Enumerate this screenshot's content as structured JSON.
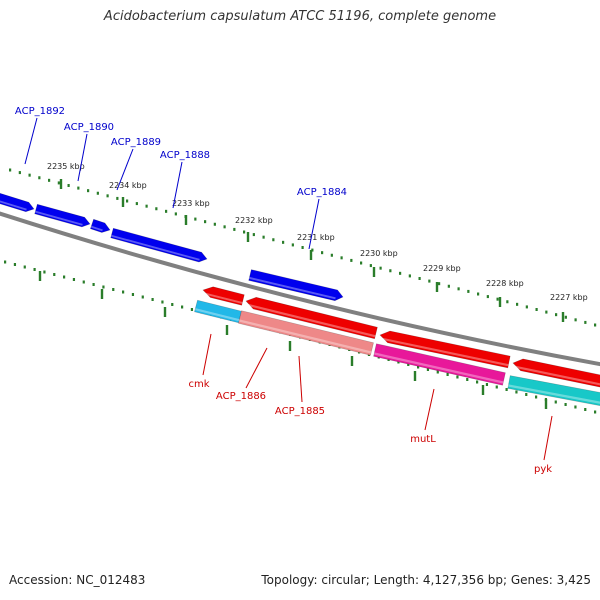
{
  "title": "Acidobacterium capsulatum ATCC 51196, complete genome",
  "footer": {
    "accession": "Accession: NC_012483",
    "topology": "Topology: circular; Length: 4,127,356 bp; Genes: 3,425"
  },
  "colors": {
    "backbone": "#808080",
    "tick": "#2a7d2a",
    "forward_label": "#0000cc",
    "reverse_label": "#cc0000"
  },
  "scale_ticks": [
    {
      "label": "2235 kbp"
    },
    {
      "label": "2234 kbp"
    },
    {
      "label": "2233 kbp"
    },
    {
      "label": "2232 kbp"
    },
    {
      "label": "2231 kbp"
    },
    {
      "label": "2230 kbp"
    },
    {
      "label": "2229 kbp"
    },
    {
      "label": "2228 kbp"
    },
    {
      "label": "2227 kbp"
    }
  ],
  "forward_genes": [
    {
      "label": "ACP_1892",
      "color": "#0000ee"
    },
    {
      "label": "ACP_1890",
      "color": "#0000ee"
    },
    {
      "label": "ACP_1889",
      "color": "#0000ee"
    },
    {
      "label": "ACP_1888",
      "color": "#0000ee"
    },
    {
      "label": "ACP_1884",
      "color": "#0000ee"
    }
  ],
  "reverse_genes": [
    {
      "label": "cmk",
      "color": "#22b8e8"
    },
    {
      "label": "ACP_1886",
      "color": "#ee0000"
    },
    {
      "label": "ACP_1885",
      "color": "#ee8888"
    },
    {
      "label": "mutL",
      "color": "#e8189a"
    },
    {
      "label": "pyk",
      "color": "#18c8c8"
    }
  ]
}
